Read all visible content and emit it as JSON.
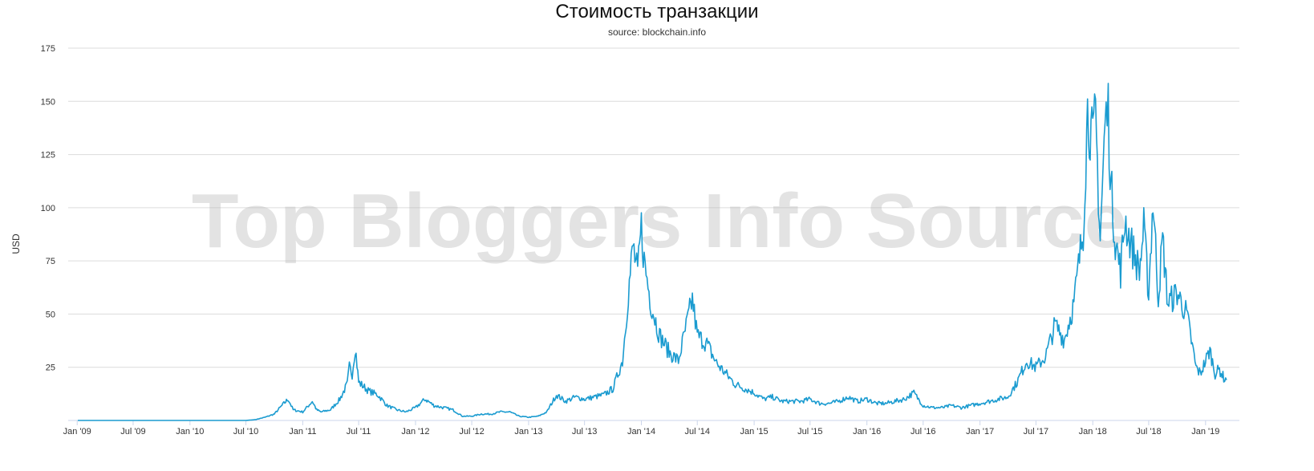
{
  "chart_data": {
    "type": "line",
    "title": "Стоимость транзакции",
    "subtitle": "source: blockchain.info",
    "xlabel": "",
    "ylabel": "USD",
    "ylim": [
      0,
      175
    ],
    "yticks": [
      25,
      50,
      75,
      100,
      125,
      150,
      175
    ],
    "xticks": [
      "Jan '09",
      "Jul '09",
      "Jan '10",
      "Jul '10",
      "Jan '11",
      "Jul '11",
      "Jan '12",
      "Jul '12",
      "Jan '13",
      "Jul '13",
      "Jan '14",
      "Jul '14",
      "Jan '15",
      "Jul '15",
      "Jan '16",
      "Jul '16",
      "Jan '17",
      "Jul '17",
      "Jan '18",
      "Jul '18",
      "Jan '19"
    ],
    "xlim": [
      "2009-01-03",
      "2019-03-10"
    ],
    "grid": true,
    "legend": "none",
    "watermark": "Top Bloggers Info Source",
    "series": [
      {
        "color": "#1a9bd0",
        "points": [
          [
            "2009-01-03",
            0
          ],
          [
            "2010-01-01",
            0
          ],
          [
            "2010-07-01",
            0
          ],
          [
            "2010-08-01",
            0.4
          ],
          [
            "2010-09-01",
            1.5
          ],
          [
            "2010-10-01",
            3
          ],
          [
            "2010-11-01",
            8
          ],
          [
            "2010-11-15",
            10
          ],
          [
            "2010-12-01",
            5
          ],
          [
            "2011-01-01",
            4
          ],
          [
            "2011-02-01",
            9
          ],
          [
            "2011-02-15",
            5
          ],
          [
            "2011-03-01",
            4
          ],
          [
            "2011-04-01",
            5
          ],
          [
            "2011-05-01",
            10
          ],
          [
            "2011-05-25",
            17
          ],
          [
            "2011-06-01",
            25
          ],
          [
            "2011-06-10",
            22
          ],
          [
            "2011-06-20",
            35
          ],
          [
            "2011-07-01",
            18
          ],
          [
            "2011-08-01",
            14
          ],
          [
            "2011-09-01",
            12
          ],
          [
            "2011-10-01",
            7
          ],
          [
            "2011-11-01",
            5
          ],
          [
            "2011-12-01",
            4
          ],
          [
            "2012-01-01",
            6
          ],
          [
            "2012-02-01",
            10
          ],
          [
            "2012-03-01",
            7
          ],
          [
            "2012-04-01",
            6
          ],
          [
            "2012-05-01",
            5
          ],
          [
            "2012-06-01",
            2
          ],
          [
            "2012-07-01",
            2
          ],
          [
            "2012-08-01",
            3
          ],
          [
            "2012-09-01",
            3
          ],
          [
            "2012-10-01",
            4
          ],
          [
            "2012-11-01",
            4
          ],
          [
            "2012-12-01",
            2
          ],
          [
            "2013-01-01",
            1.5
          ],
          [
            "2013-02-01",
            2
          ],
          [
            "2013-03-01",
            4
          ],
          [
            "2013-04-01",
            12
          ],
          [
            "2013-05-01",
            9
          ],
          [
            "2013-06-01",
            11
          ],
          [
            "2013-07-01",
            10
          ],
          [
            "2013-08-01",
            11
          ],
          [
            "2013-09-01",
            12
          ],
          [
            "2013-10-01",
            15
          ],
          [
            "2013-11-01",
            28
          ],
          [
            "2013-11-20",
            60
          ],
          [
            "2013-12-05",
            82
          ],
          [
            "2013-12-20",
            68
          ],
          [
            "2014-01-01",
            91
          ],
          [
            "2014-01-10",
            75
          ],
          [
            "2014-02-01",
            55
          ],
          [
            "2014-03-01",
            40
          ],
          [
            "2014-04-01",
            32
          ],
          [
            "2014-05-01",
            28
          ],
          [
            "2014-06-01",
            48
          ],
          [
            "2014-06-15",
            57
          ],
          [
            "2014-07-01",
            40
          ],
          [
            "2014-08-01",
            36
          ],
          [
            "2014-09-01",
            27
          ],
          [
            "2014-10-01",
            22
          ],
          [
            "2014-11-01",
            17
          ],
          [
            "2014-12-01",
            15
          ],
          [
            "2015-01-01",
            13
          ],
          [
            "2015-02-01",
            10
          ],
          [
            "2015-03-01",
            11
          ],
          [
            "2015-04-01",
            9
          ],
          [
            "2015-05-01",
            9
          ],
          [
            "2015-06-01",
            9
          ],
          [
            "2015-07-01",
            10
          ],
          [
            "2015-08-01",
            8
          ],
          [
            "2015-09-01",
            8
          ],
          [
            "2015-10-01",
            9
          ],
          [
            "2015-11-01",
            11
          ],
          [
            "2015-12-01",
            9
          ],
          [
            "2016-01-01",
            10
          ],
          [
            "2016-02-01",
            8
          ],
          [
            "2016-03-01",
            8
          ],
          [
            "2016-04-01",
            9
          ],
          [
            "2016-05-01",
            10
          ],
          [
            "2016-06-01",
            13
          ],
          [
            "2016-07-01",
            7
          ],
          [
            "2016-08-01",
            6
          ],
          [
            "2016-09-01",
            6
          ],
          [
            "2016-10-01",
            7
          ],
          [
            "2016-11-01",
            6
          ],
          [
            "2016-12-01",
            7
          ],
          [
            "2017-01-01",
            8
          ],
          [
            "2017-02-01",
            9
          ],
          [
            "2017-03-01",
            10
          ],
          [
            "2017-04-01",
            11
          ],
          [
            "2017-05-01",
            18
          ],
          [
            "2017-06-01",
            28
          ],
          [
            "2017-07-01",
            25
          ],
          [
            "2017-08-01",
            30
          ],
          [
            "2017-09-01",
            45
          ],
          [
            "2017-10-01",
            38
          ],
          [
            "2017-11-01",
            55
          ],
          [
            "2017-12-01",
            90
          ],
          [
            "2017-12-15",
            145
          ],
          [
            "2018-01-01",
            130
          ],
          [
            "2018-01-10",
            143
          ],
          [
            "2018-01-25",
            85
          ],
          [
            "2018-02-10",
            140
          ],
          [
            "2018-02-20",
            146
          ],
          [
            "2018-03-01",
            110
          ],
          [
            "2018-03-15",
            85
          ],
          [
            "2018-04-01",
            70
          ],
          [
            "2018-04-15",
            95
          ],
          [
            "2018-05-01",
            85
          ],
          [
            "2018-06-01",
            70
          ],
          [
            "2018-06-15",
            90
          ],
          [
            "2018-07-01",
            60
          ],
          [
            "2018-07-15",
            104
          ],
          [
            "2018-08-01",
            58
          ],
          [
            "2018-08-15",
            85
          ],
          [
            "2018-09-01",
            55
          ],
          [
            "2018-10-01",
            60
          ],
          [
            "2018-11-01",
            50
          ],
          [
            "2018-12-01",
            25
          ],
          [
            "2018-12-15",
            22
          ],
          [
            "2019-01-01",
            28
          ],
          [
            "2019-01-15",
            33
          ],
          [
            "2019-02-01",
            22
          ],
          [
            "2019-02-15",
            24
          ],
          [
            "2019-03-01",
            20
          ],
          [
            "2019-03-10",
            19
          ]
        ]
      }
    ]
  }
}
